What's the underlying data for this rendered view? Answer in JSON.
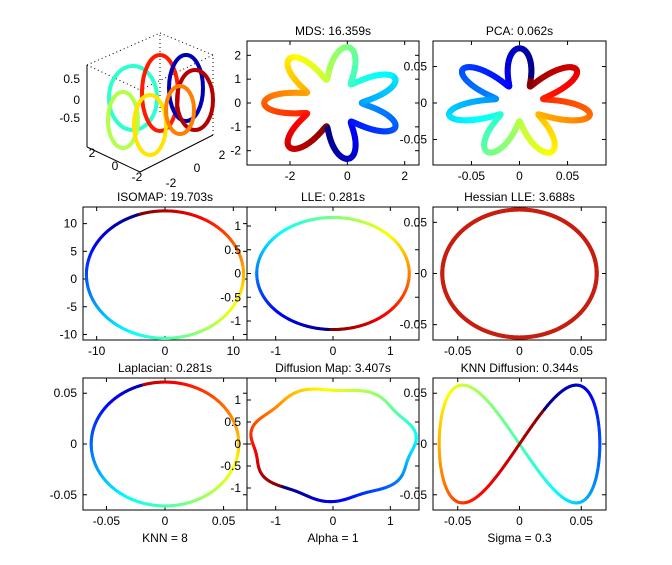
{
  "figure": {
    "colormap": "jet",
    "titles": {
      "mds": "MDS: 16.359s",
      "pca": "PCA: 0.062s",
      "isomap": "ISOMAP: 19.703s",
      "lle": "LLE: 0.281s",
      "hlle": "Hessian LLE: 3.688s",
      "lap": "Laplacian: 0.281s",
      "dm": "Diffusion Map: 3.407s",
      "knnd": "KNN Diffusion: 0.344s"
    },
    "footers": {
      "knn": "KNN = 8",
      "alpha": "Alpha = 1",
      "sigma": "Sigma = 0.3"
    }
  },
  "chart_data": [
    {
      "id": "swiss3d",
      "type": "scatter",
      "title": "",
      "projection": "3d",
      "xlim": [
        -3,
        3
      ],
      "ylim": [
        -3,
        3
      ],
      "zlim": [
        -0.8,
        0.8
      ],
      "zticks": [
        "0.5",
        "0",
        "-0.5"
      ],
      "xticks": [
        "-2",
        "0",
        "2"
      ],
      "yticks": [
        "2",
        "0",
        "-2"
      ],
      "grid": true,
      "description_data": "Seven-lobed closed curve in 3D; lobes drawn as loops colored by jet colormap"
    },
    {
      "id": "mds",
      "type": "scatter",
      "title": "MDS: 16.359s",
      "xlim": [
        -3.5,
        2.5
      ],
      "ylim": [
        -2.6,
        2.6
      ],
      "xticks": [
        "-2",
        "0",
        "2"
      ],
      "yticks": [
        "2",
        "1",
        "0",
        "-1",
        "-2"
      ],
      "shape": "7-petal rose, radius 1.0–2.4, centered (-0.5, 0)"
    },
    {
      "id": "pca",
      "type": "scatter",
      "title": "PCA: 0.062s",
      "xlim": [
        -0.09,
        0.09
      ],
      "ylim": [
        -0.085,
        0.085
      ],
      "xticks": [
        "-0.05",
        "0",
        "0.05"
      ],
      "yticks": [
        "0.05",
        "0",
        "-0.05"
      ],
      "shape": "7-petal rose, radius 0.03–0.075"
    },
    {
      "id": "isomap",
      "type": "scatter",
      "title": "ISOMAP: 19.703s",
      "xlim": [
        -12,
        12
      ],
      "ylim": [
        -11,
        13
      ],
      "xticks": [
        "-10",
        "0",
        "10"
      ],
      "yticks": [
        "10",
        "5",
        "0",
        "-5",
        "-10"
      ],
      "shape": "circle, radius ~11.5"
    },
    {
      "id": "lle",
      "type": "scatter",
      "title": "LLE: 0.281s",
      "xlim": [
        -1.5,
        1.5
      ],
      "ylim": [
        -1.4,
        1.4
      ],
      "xticks": [
        "-1",
        "0",
        "1"
      ],
      "yticks": [
        "1",
        "0.5",
        "0",
        "-0.5",
        "-1"
      ],
      "shape": "ellipse, radii 1.35 x 1.2"
    },
    {
      "id": "hlle",
      "type": "scatter",
      "title": "Hessian LLE: 3.688s",
      "xlim": [
        -0.07,
        0.07
      ],
      "ylim": [
        -0.065,
        0.065
      ],
      "xticks": [
        "-0.05",
        "0",
        "0.05"
      ],
      "yticks": [
        "0.05",
        "0",
        "-0.05"
      ],
      "shape": "circle, radius ~0.0625, uniform red"
    },
    {
      "id": "lap",
      "type": "scatter",
      "title": "Laplacian: 0.281s",
      "xlim": [
        -0.07,
        0.07
      ],
      "ylim": [
        -0.065,
        0.065
      ],
      "xticks": [
        "-0.05",
        "0",
        "0.05"
      ],
      "yticks": [
        "0.05",
        "0",
        "-0.05"
      ],
      "footer": "KNN = 8",
      "shape": "circle, radius ~0.063"
    },
    {
      "id": "dm",
      "type": "scatter",
      "title": "Diffusion Map: 3.407s",
      "xlim": [
        -1.5,
        1.5
      ],
      "ylim": [
        -1.5,
        1.5
      ],
      "xticks": [
        "-1",
        "0",
        "1"
      ],
      "yticks": [
        "1",
        "0.5",
        "0",
        "-0.5",
        "-1"
      ],
      "footer": "Alpha = 1",
      "shape": "wavy circle, radius ~1.4"
    },
    {
      "id": "knnd",
      "type": "scatter",
      "title": "KNN Diffusion: 0.344s",
      "xlim": [
        -0.07,
        0.07
      ],
      "ylim": [
        -0.065,
        0.065
      ],
      "xticks": [
        "-0.05",
        "0",
        "0.05"
      ],
      "yticks": [
        "0.05",
        "0",
        "-0.05"
      ],
      "footer": "Sigma = 0.3",
      "shape": "figure-eight Lissajous (x=a cos t, y=b sin 2t)"
    }
  ]
}
